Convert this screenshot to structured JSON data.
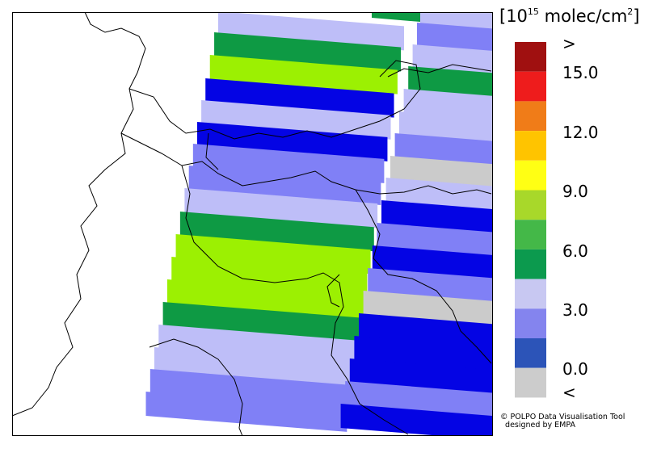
{
  "legend": {
    "unit_exp": "15",
    "unit_text": "molec/cm",
    "unit_sq": "2",
    "labels": [
      ">",
      "15.0",
      "12.0",
      "9.0",
      "6.0",
      "3.0",
      "0.0",
      "<"
    ],
    "colors": [
      "#a01010",
      "#ee1c1c",
      "#f07c18",
      "#ffc400",
      "#ffff14",
      "#a8d82a",
      "#44b848",
      "#0c9a4e",
      "#c8c8f2",
      "#8484ee",
      "#2c54b8",
      "#cccccc"
    ]
  },
  "credit": {
    "line1": "POLPO Data Visualisation Tool",
    "line2": "designed by EMPA",
    "symbol": "©"
  },
  "palette": {
    "lavender": "#bebef8",
    "periwinkle": "#8080f6",
    "blue": "#0404e4",
    "green": "#0e9a44",
    "lime": "#9cf002",
    "gray": "#cbcbcb"
  }
}
